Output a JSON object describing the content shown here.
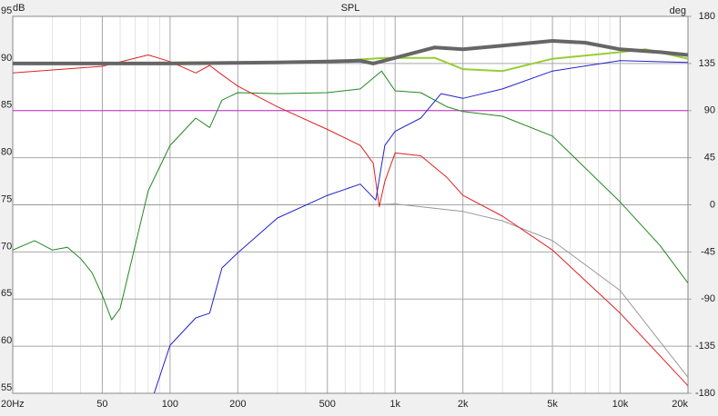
{
  "chart_data": {
    "type": "line",
    "title": "SPL",
    "ylabel": "dB",
    "y2label": "deg",
    "xscale": "log",
    "xlim": [
      20,
      20000
    ],
    "xticks": [
      {
        "value": 20,
        "label": "20Hz"
      },
      50,
      100,
      200,
      500,
      {
        "value": 1000,
        "label": "1k"
      },
      {
        "value": 2000,
        "label": "2k"
      },
      {
        "value": 5000,
        "label": "5k"
      },
      {
        "value": 10000,
        "label": "10k"
      },
      {
        "value": 20000,
        "label": "20k"
      }
    ],
    "xminorticks": [
      30,
      40,
      60,
      70,
      80,
      90,
      300,
      400,
      600,
      700,
      800,
      900,
      3000,
      4000,
      6000,
      7000,
      8000,
      9000
    ],
    "ylim": [
      55,
      95
    ],
    "yticks": [
      55,
      60,
      65,
      70,
      75,
      80,
      85,
      90,
      95
    ],
    "y2lim": [
      -180,
      180
    ],
    "y2ticks": [
      -180,
      -135,
      -90,
      -45,
      0,
      45,
      90,
      135,
      180
    ],
    "grid": true,
    "series": [
      {
        "color": "#666666",
        "width": 4,
        "x": [
          20,
          100,
          300,
          500,
          700,
          800,
          1000,
          1500,
          2000,
          3000,
          5000,
          7000,
          10000,
          15000,
          20000
        ],
        "values": [
          90.0,
          90.0,
          90.1,
          90.2,
          90.3,
          90.0,
          90.6,
          91.7,
          91.5,
          91.9,
          92.4,
          92.2,
          91.5,
          91.2,
          90.9
        ]
      },
      {
        "color": "#99cc33",
        "width": 2,
        "x": [
          20,
          500,
          900,
          1500,
          2000,
          3000,
          5000,
          10000,
          13000,
          20000
        ],
        "values": [
          90.0,
          90.2,
          90.6,
          90.6,
          89.4,
          89.2,
          90.5,
          91.2,
          91.5,
          90.5
        ]
      },
      {
        "color": "#dd2222",
        "width": 1,
        "x": [
          20,
          50,
          80,
          100,
          130,
          150,
          170,
          200,
          300,
          500,
          700,
          800,
          850,
          900,
          1000,
          1300,
          1700,
          2000,
          3000,
          5000,
          10000,
          20000
        ],
        "values": [
          89.0,
          89.7,
          90.9,
          90.2,
          89.0,
          89.8,
          88.8,
          87.6,
          85.4,
          83.0,
          81.3,
          79.4,
          74.8,
          77.5,
          80.5,
          80.2,
          77.9,
          76.0,
          73.8,
          70.2,
          63.5,
          55.8
        ]
      },
      {
        "color": "#228822",
        "width": 1,
        "x": [
          20,
          25,
          30,
          35,
          40,
          45,
          50,
          55,
          60,
          70,
          80,
          100,
          130,
          150,
          170,
          200,
          300,
          500,
          700,
          870,
          1000,
          1300,
          1700,
          2000,
          3000,
          5000,
          10000,
          15000,
          20000
        ],
        "values": [
          70.2,
          71.2,
          70.2,
          70.5,
          69.3,
          67.8,
          65.4,
          62.8,
          64.0,
          70.7,
          76.5,
          81.3,
          84.2,
          83.2,
          86.1,
          86.9,
          86.8,
          86.9,
          87.3,
          89.2,
          87.1,
          86.9,
          85.4,
          84.9,
          84.4,
          82.3,
          75.3,
          70.7,
          66.7
        ]
      },
      {
        "color": "#2222cc",
        "width": 1,
        "x": [
          85,
          100,
          130,
          150,
          170,
          200,
          300,
          500,
          700,
          820,
          900,
          1000,
          1300,
          1600,
          2000,
          3000,
          5000,
          10000,
          20000
        ],
        "values": [
          55.0,
          60.1,
          63.0,
          63.5,
          68.3,
          69.9,
          73.6,
          76.0,
          77.2,
          75.5,
          81.3,
          82.8,
          84.2,
          86.8,
          86.3,
          87.3,
          89.2,
          90.3,
          90.1
        ]
      },
      {
        "color": "#999999",
        "width": 1,
        "x": [
          20,
          800,
          1000,
          2000,
          3000,
          5000,
          10000,
          20000
        ],
        "values": [
          75.0,
          75.0,
          75.1,
          74.3,
          73.3,
          71.2,
          65.9,
          56.7
        ]
      },
      {
        "color": "#cc33cc",
        "width": 1,
        "x": [
          20,
          20000
        ],
        "values": [
          85.0,
          85.0
        ]
      }
    ]
  }
}
